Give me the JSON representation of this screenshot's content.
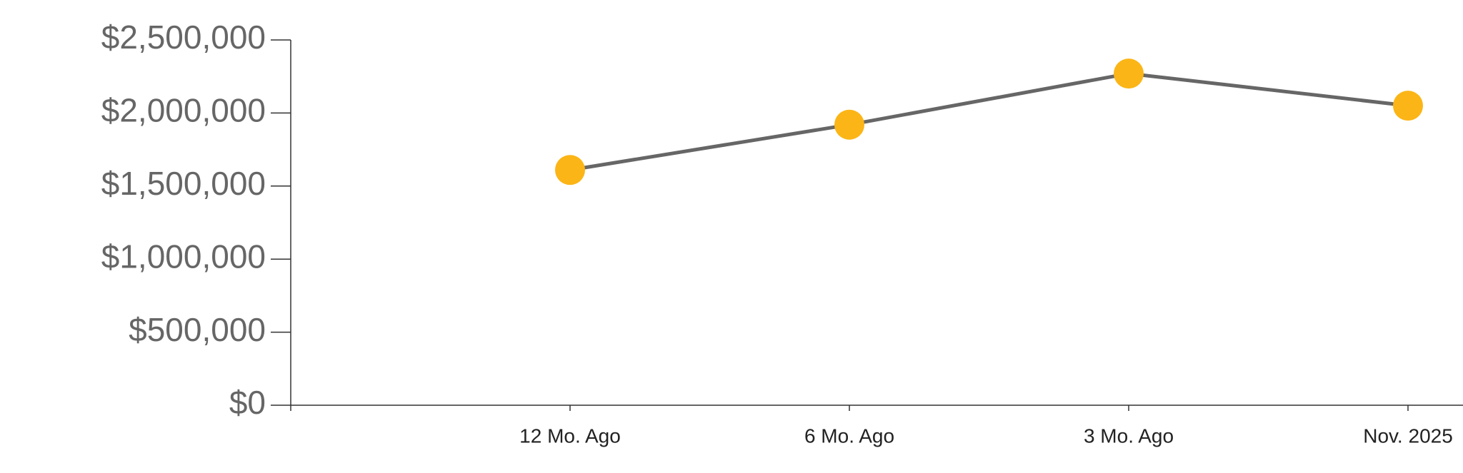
{
  "chart_data": {
    "type": "line",
    "categories": [
      null,
      "12 Mo. Ago",
      "6 Mo. Ago",
      "3 Mo. Ago",
      "Nov. 2025"
    ],
    "values": [
      null,
      1610000,
      1920000,
      2270000,
      2050000
    ],
    "color": "#fbb516",
    "line_color": "#666666",
    "ylim": [
      0,
      2500000
    ],
    "yticks": [
      {
        "value": 0,
        "label": "$0"
      },
      {
        "value": 500000,
        "label": "$500,000"
      },
      {
        "value": 1000000,
        "label": "$1,000,000"
      },
      {
        "value": 1500000,
        "label": "$1,500,000"
      },
      {
        "value": 2000000,
        "label": "$2,000,000"
      },
      {
        "value": 2500000,
        "label": "$2,500,000"
      }
    ],
    "grid": false
  }
}
